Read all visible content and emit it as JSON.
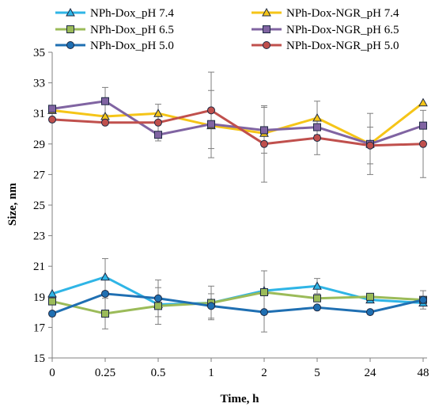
{
  "chart_data": {
    "type": "line",
    "title": "",
    "xlabel": "Time, h",
    "ylabel": "Size, nm",
    "categories": [
      "0",
      "0.25",
      "0.5",
      "1",
      "2",
      "5",
      "24",
      "48"
    ],
    "ylim": [
      15,
      35
    ],
    "yticks": [
      15,
      17,
      19,
      21,
      23,
      25,
      27,
      29,
      31,
      33,
      35
    ],
    "grid": false,
    "legend_position": "top",
    "series": [
      {
        "name": "NPh-Dox_pH 7.4",
        "color": "#2fb5e6",
        "marker": "triangle",
        "values": [
          19.2,
          20.3,
          18.5,
          18.6,
          19.4,
          19.7,
          18.8,
          18.6
        ],
        "errors": [
          0.0,
          1.2,
          0.0,
          0.0,
          0.0,
          0.5,
          0.0,
          0.0
        ]
      },
      {
        "name": "NPh-Dox_pH 6.5",
        "color": "#9bbb59",
        "marker": "square",
        "values": [
          18.7,
          17.9,
          18.4,
          18.6,
          19.3,
          18.9,
          19.0,
          18.8
        ],
        "errors": [
          0.0,
          1.0,
          1.2,
          1.1,
          1.4,
          0.0,
          0.0,
          0.6
        ]
      },
      {
        "name": "NPh-Dox_pH 5.0",
        "color": "#1f6fb2",
        "marker": "circle",
        "values": [
          17.9,
          19.2,
          18.9,
          18.4,
          18.0,
          18.3,
          18.0,
          18.8
        ],
        "errors": [
          0.0,
          0.0,
          1.2,
          0.8,
          1.3,
          0.0,
          0.0,
          0.0
        ]
      },
      {
        "name": "NPh-Dox-NGR_pH 7.4",
        "color": "#f5c518",
        "marker": "triangle",
        "values": [
          31.2,
          30.8,
          31.0,
          30.2,
          29.7,
          30.7,
          29.0,
          31.7
        ],
        "errors": [
          0.0,
          0.0,
          0.0,
          0.0,
          0.0,
          1.1,
          0.0,
          0.0
        ]
      },
      {
        "name": "NPh-Dox-NGR_pH 6.5",
        "color": "#8064a2",
        "marker": "square",
        "values": [
          31.3,
          31.8,
          29.6,
          30.3,
          29.9,
          30.1,
          29.0,
          30.2
        ],
        "errors": [
          0.0,
          0.9,
          0.0,
          2.2,
          1.5,
          0.0,
          2.0,
          0.0
        ]
      },
      {
        "name": "NPh-Dox-NGR_pH 5.0",
        "color": "#c0504d",
        "marker": "circle",
        "values": [
          30.6,
          30.4,
          30.4,
          31.2,
          29.0,
          29.4,
          28.9,
          29.0
        ],
        "errors": [
          0.0,
          0.0,
          1.2,
          2.5,
          2.5,
          1.1,
          1.2,
          2.2
        ]
      }
    ]
  }
}
